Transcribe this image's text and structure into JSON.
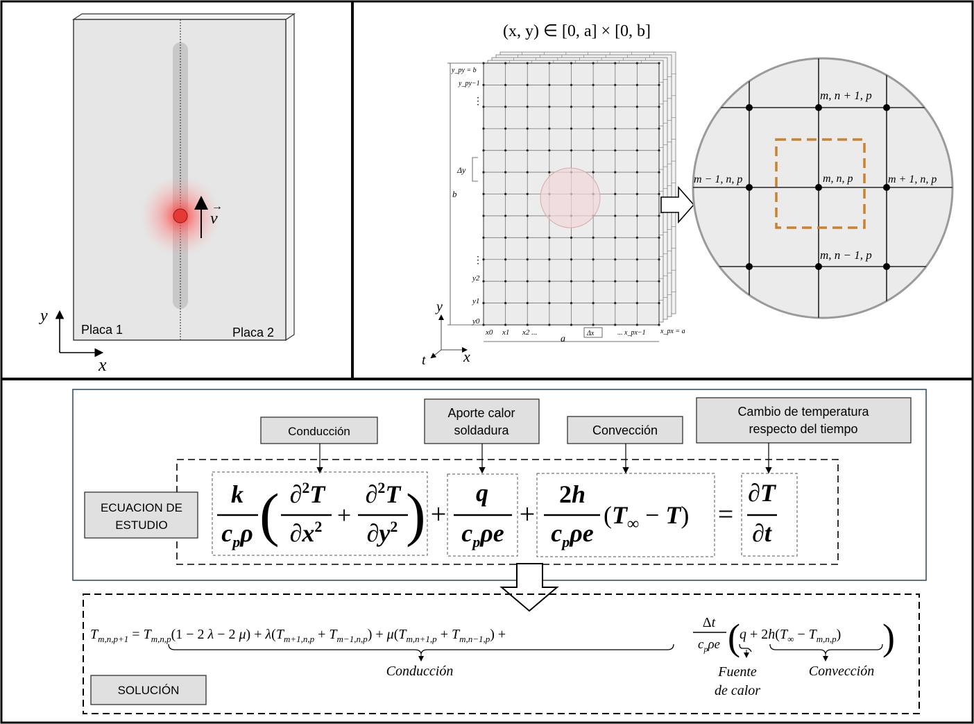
{
  "panel_plate": {
    "label_left": "Placa 1",
    "label_right": "Placa 2",
    "velocity": "v",
    "axis_x": "x",
    "axis_y": "y"
  },
  "panel_grid": {
    "domain": "(x, y) ∈ [0, a] × [0, b]",
    "y_labels": [
      "y_py = b",
      "y_py−1",
      "y2",
      "y1",
      "y0"
    ],
    "x_labels": [
      "x0",
      "x1",
      "x2 ...",
      "... x_px−1",
      "x_px = a"
    ],
    "dx": "Δx",
    "dy": "Δy",
    "a": "a",
    "b": "b",
    "axis_y": "y",
    "axis_x": "x",
    "axis_t": "t"
  },
  "panel_zoom": {
    "node_top": "m, n + 1, p",
    "node_center": "m, n, p",
    "node_left": "m − 1, n, p",
    "node_right": "m + 1, n, p",
    "node_bottom": "m, n − 1, p"
  },
  "equation": {
    "tag_conduction": "Conducción",
    "tag_heat_1": "Aporte calor",
    "tag_heat_2": "soldadura",
    "tag_convection": "Convección",
    "tag_time_1": "Cambio de temperatura",
    "tag_time_2": "respecto del tiempo",
    "study_label_1": "ECUACION DE",
    "study_label_2": "ESTUDIO"
  },
  "solution": {
    "label": "SOLUCIÓN",
    "conduction": "Conducción",
    "source_1": "Fuente",
    "source_2": "de calor",
    "convection": "Convección"
  },
  "colors": {
    "plate_fill": "#e6e6e6",
    "heat_spot": "#e53935",
    "box_fill": "#e0e0e0",
    "zoom_dash": "#c9822e",
    "frame": "#0a0a0a",
    "eq_border": "#34506b"
  }
}
